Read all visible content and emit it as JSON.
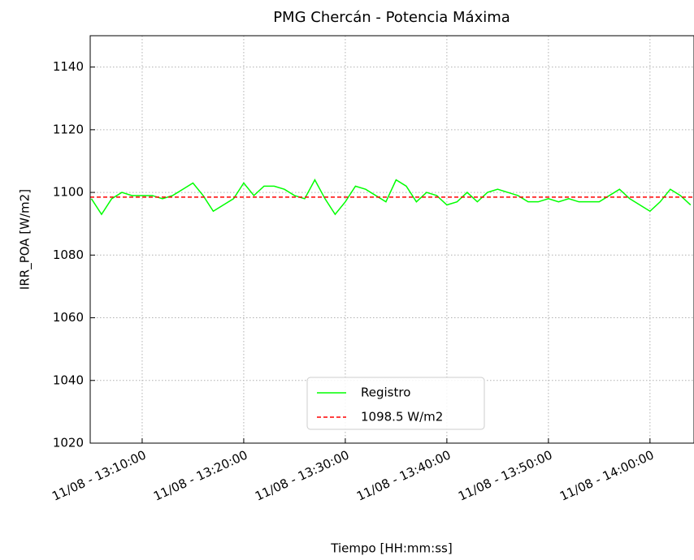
{
  "chart_data": {
    "type": "line",
    "title": "PMG Chercán - Potencia Máxima",
    "xlabel": "Tiempo [HH:mm:ss]",
    "ylabel": "IRR_POA [W/m2]",
    "x": [
      "13:05:00",
      "13:06:00",
      "13:07:00",
      "13:08:00",
      "13:09:00",
      "13:10:00",
      "13:11:00",
      "13:12:00",
      "13:13:00",
      "13:14:00",
      "13:15:00",
      "13:16:00",
      "13:17:00",
      "13:18:00",
      "13:19:00",
      "13:20:00",
      "13:21:00",
      "13:22:00",
      "13:23:00",
      "13:24:00",
      "13:25:00",
      "13:26:00",
      "13:27:00",
      "13:28:00",
      "13:29:00",
      "13:30:00",
      "13:31:00",
      "13:32:00",
      "13:33:00",
      "13:34:00",
      "13:35:00",
      "13:36:00",
      "13:37:00",
      "13:38:00",
      "13:39:00",
      "13:40:00",
      "13:41:00",
      "13:42:00",
      "13:43:00",
      "13:44:00",
      "13:45:00",
      "13:46:00",
      "13:47:00",
      "13:48:00",
      "13:49:00",
      "13:50:00",
      "13:51:00",
      "13:52:00",
      "13:53:00",
      "13:54:00",
      "13:55:00",
      "13:56:00",
      "13:57:00",
      "13:58:00",
      "13:59:00",
      "14:00:00",
      "14:01:00",
      "14:02:00",
      "14:03:00",
      "14:04:00"
    ],
    "series": [
      {
        "name": "Registro",
        "color": "#00ff00",
        "values": [
          1098,
          1093,
          1098,
          1100,
          1099,
          1099,
          1099,
          1098,
          1099,
          1101,
          1103,
          1099,
          1094,
          1096,
          1098,
          1103,
          1099,
          1102,
          1102,
          1101,
          1099,
          1098,
          1104,
          1098,
          1093,
          1097,
          1102,
          1101,
          1099,
          1097,
          1104,
          1102,
          1097,
          1100,
          1099,
          1096,
          1097,
          1100,
          1097,
          1100,
          1101,
          1100,
          1099,
          1097,
          1097,
          1098,
          1097,
          1098,
          1097,
          1097,
          1097,
          1099,
          1101,
          1098,
          1096,
          1094,
          1097,
          1101,
          1099,
          1096
        ]
      }
    ],
    "reference": {
      "name": "1098.5 W/m2",
      "color": "#ff0000",
      "value": 1098.5
    },
    "xlim": [
      "13:04:53",
      "14:04:20"
    ],
    "xticks": [
      {
        "value": "13:10:00",
        "label": "11/08 - 13:10:00"
      },
      {
        "value": "13:20:00",
        "label": "11/08 - 13:20:00"
      },
      {
        "value": "13:30:00",
        "label": "11/08 - 13:30:00"
      },
      {
        "value": "13:40:00",
        "label": "11/08 - 13:40:00"
      },
      {
        "value": "13:50:00",
        "label": "11/08 - 13:50:00"
      },
      {
        "value": "14:00:00",
        "label": "11/08 - 14:00:00"
      }
    ],
    "ylim": [
      1020,
      1150
    ],
    "yticks": [
      1020,
      1040,
      1060,
      1080,
      1100,
      1120,
      1140
    ],
    "grid": true
  }
}
